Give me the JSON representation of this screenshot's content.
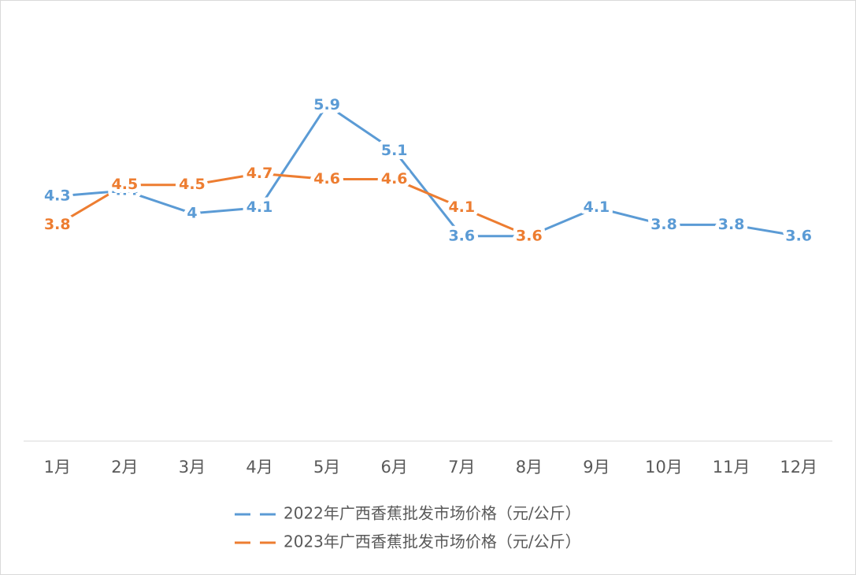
{
  "chart_data": {
    "type": "line",
    "categories": [
      "1月",
      "2月",
      "3月",
      "4月",
      "5月",
      "6月",
      "7月",
      "8月",
      "9月",
      "10月",
      "11月",
      "12月"
    ],
    "series": [
      {
        "name": "2022年广西香蕉批发市场价格（元/公斤）",
        "color": "#5b9bd5",
        "values": [
          4.3,
          4.4,
          4,
          4.1,
          5.9,
          5.1,
          3.6,
          3.6,
          4.1,
          3.8,
          3.8,
          3.6
        ]
      },
      {
        "name": "2023年广西香蕉批发市场价格（元/公斤）",
        "color": "#ed7d31",
        "values": [
          3.8,
          4.5,
          4.5,
          4.7,
          4.6,
          4.6,
          4.1,
          3.6,
          null,
          null,
          null,
          null
        ]
      }
    ],
    "ylim": [
      0,
      7
    ],
    "legend": "bottom"
  }
}
